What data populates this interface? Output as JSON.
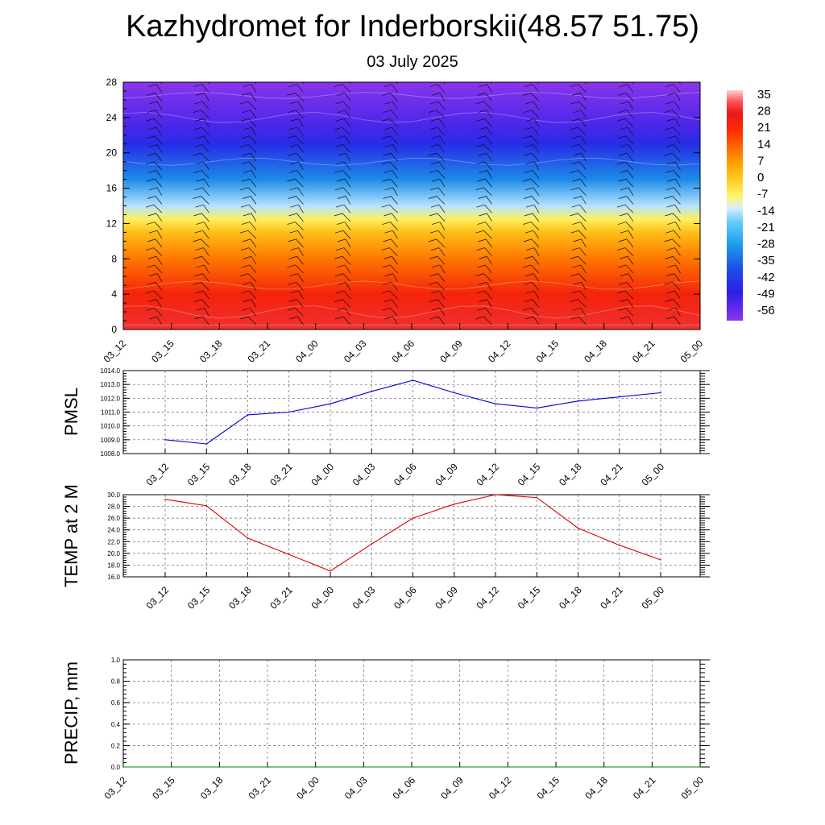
{
  "title": "Kazhydromet for Inderborskii(48.57 51.75)",
  "subtitle": "03 July 2025",
  "chart_data": [
    {
      "type": "heatmap",
      "x_ticks": [
        "03_12",
        "03_15",
        "03_18",
        "03_21",
        "04_00",
        "04_03",
        "04_06",
        "04_09",
        "04_12",
        "04_15",
        "04_18",
        "04_21",
        "05_00"
      ],
      "y_ticks": [
        "0",
        "4",
        "8",
        "12",
        "16",
        "20",
        "24",
        "28"
      ],
      "ylim": [
        0,
        28
      ],
      "colorbar_labels": [
        "35",
        "28",
        "21",
        "14",
        "7",
        "0",
        "-7",
        "-14",
        "-21",
        "-28",
        "-35",
        "-42",
        "-49",
        "-56"
      ],
      "colorbar_stops": [
        {
          "value": 38,
          "color": "#ffd0d0"
        },
        {
          "value": 33,
          "color": "#ff5050"
        },
        {
          "value": 28,
          "color": "#e51a1a"
        },
        {
          "value": 21,
          "color": "#ff2a00"
        },
        {
          "value": 14,
          "color": "#ff6600"
        },
        {
          "value": 7,
          "color": "#ffa000"
        },
        {
          "value": 0,
          "color": "#ffcc22"
        },
        {
          "value": -7,
          "color": "#fff56a"
        },
        {
          "value": -12,
          "color": "#ddeeff"
        },
        {
          "value": -18,
          "color": "#66ccff"
        },
        {
          "value": -28,
          "color": "#1c9ae8"
        },
        {
          "value": -38,
          "color": "#1e4ee6"
        },
        {
          "value": -48,
          "color": "#2a1fe8"
        },
        {
          "value": -60,
          "color": "#8a35ec"
        }
      ],
      "temperature_profile": [
        {
          "h": 0,
          "t": 30
        },
        {
          "h": 4,
          "t": 24
        },
        {
          "h": 8,
          "t": 12
        },
        {
          "h": 11,
          "t": 2
        },
        {
          "h": 12.5,
          "t": -6
        },
        {
          "h": 14,
          "t": -14
        },
        {
          "h": 17,
          "t": -30
        },
        {
          "h": 21,
          "t": -45
        },
        {
          "h": 23,
          "t": -52
        },
        {
          "h": 28,
          "t": -60
        }
      ],
      "has_wind_barbs": true,
      "has_contours": true
    },
    {
      "type": "line",
      "ylabel": "PMSL",
      "x": [
        "03_12",
        "03_15",
        "03_18",
        "03_21",
        "04_00",
        "04_03",
        "04_06",
        "04_09",
        "04_12",
        "04_15",
        "04_18",
        "04_21",
        "05_00"
      ],
      "values": [
        1009.0,
        1008.7,
        1010.8,
        1011.0,
        1011.6,
        1012.5,
        1013.3,
        1012.4,
        1011.6,
        1011.3,
        1011.8,
        1012.1,
        1012.4
      ],
      "y_ticks": [
        "1008.0",
        "1009.0",
        "1010.0",
        "1011.0",
        "1012.0",
        "1013.0",
        "1014.0"
      ],
      "ylim": [
        1008.0,
        1014.0
      ],
      "color": "#0000dd",
      "grid": true
    },
    {
      "type": "line",
      "ylabel": "TEMP at 2 M",
      "x": [
        "03_12",
        "03_15",
        "03_18",
        "03_21",
        "04_00",
        "04_03",
        "04_06",
        "04_09",
        "04_12",
        "04_15",
        "04_18",
        "04_21",
        "05_00"
      ],
      "values": [
        29.2,
        28.1,
        22.6,
        19.8,
        17.0,
        21.6,
        26.0,
        28.4,
        30.0,
        29.5,
        24.3,
        21.4,
        18.9
      ],
      "y_ticks": [
        "16.0",
        "18.0",
        "20.0",
        "22.0",
        "24.0",
        "26.0",
        "28.0",
        "30.0"
      ],
      "ylim": [
        16.0,
        30.0
      ],
      "color": "#dd0000",
      "grid": true
    },
    {
      "type": "line",
      "ylabel": "PRECIP, mm",
      "x": [
        "03_12",
        "03_15",
        "03_18",
        "03_21",
        "04_00",
        "04_03",
        "04_06",
        "04_09",
        "04_12",
        "04_15",
        "04_18",
        "04_21",
        "05_00"
      ],
      "values": [
        0,
        0,
        0,
        0,
        0,
        0,
        0,
        0,
        0,
        0,
        0,
        0,
        0
      ],
      "y_ticks": [
        "0.0",
        "0.2",
        "0.4",
        "0.6",
        "0.8",
        "1.0"
      ],
      "ylim": [
        0.0,
        1.0
      ],
      "color": "#008800",
      "grid": true
    }
  ]
}
